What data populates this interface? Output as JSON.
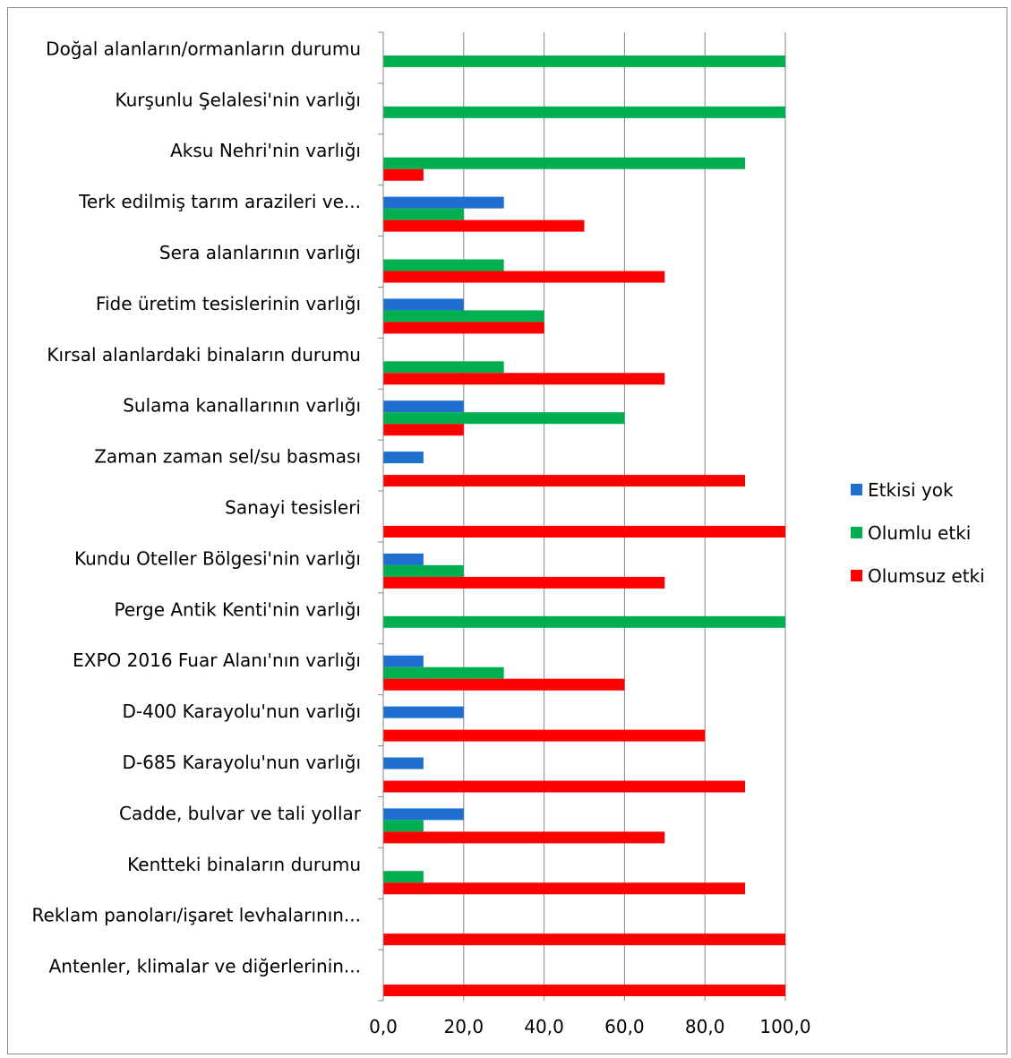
{
  "chart_data": {
    "type": "bar",
    "orientation": "horizontal",
    "categories": [
      "Doğal alanların/ormanların durumu",
      "Kurşunlu Şelalesi'nin varlığı",
      "Aksu Nehri'nin varlığı",
      "Terk edilmiş tarım arazileri ve...",
      "Sera alanlarının varlığı",
      "Fide üretim tesislerinin varlığı",
      "Kırsal alanlardaki binaların durumu",
      "Sulama kanallarının varlığı",
      "Zaman zaman sel/su basması",
      "Sanayi tesisleri",
      "Kundu Oteller Bölgesi'nin varlığı",
      "Perge Antik Kenti'nin varlığı",
      "EXPO 2016 Fuar Alanı'nın varlığı",
      "D-400 Karayolu'nun varlığı",
      "D-685 Karayolu'nun varlığı",
      "Cadde, bulvar ve tali yollar",
      "Kentteki binaların durumu",
      "Reklam panoları/işaret levhalarının...",
      "Antenler, klimalar ve diğerlerinin..."
    ],
    "series": [
      {
        "name": "Etkisi yok",
        "color": "#1f6fd0",
        "values": [
          0,
          0,
          0,
          30,
          0,
          20,
          0,
          20,
          10,
          0,
          10,
          0,
          10,
          20,
          10,
          20,
          0,
          0,
          0
        ]
      },
      {
        "name": "Olumlu etki",
        "color": "#00b050",
        "values": [
          100,
          100,
          90,
          20,
          30,
          40,
          30,
          60,
          0,
          0,
          20,
          100,
          30,
          0,
          0,
          10,
          10,
          0,
          0
        ]
      },
      {
        "name": "Olumsuz etki",
        "color": "#ff0000",
        "values": [
          0,
          0,
          10,
          50,
          70,
          40,
          70,
          20,
          90,
          100,
          70,
          0,
          60,
          80,
          90,
          70,
          90,
          100,
          100
        ]
      }
    ],
    "x_ticks": [
      "0,0",
      "20,0",
      "40,0",
      "60,0",
      "80,0",
      "100,0"
    ],
    "xlim": [
      0,
      100
    ],
    "grid": true,
    "legend_position": "right"
  }
}
